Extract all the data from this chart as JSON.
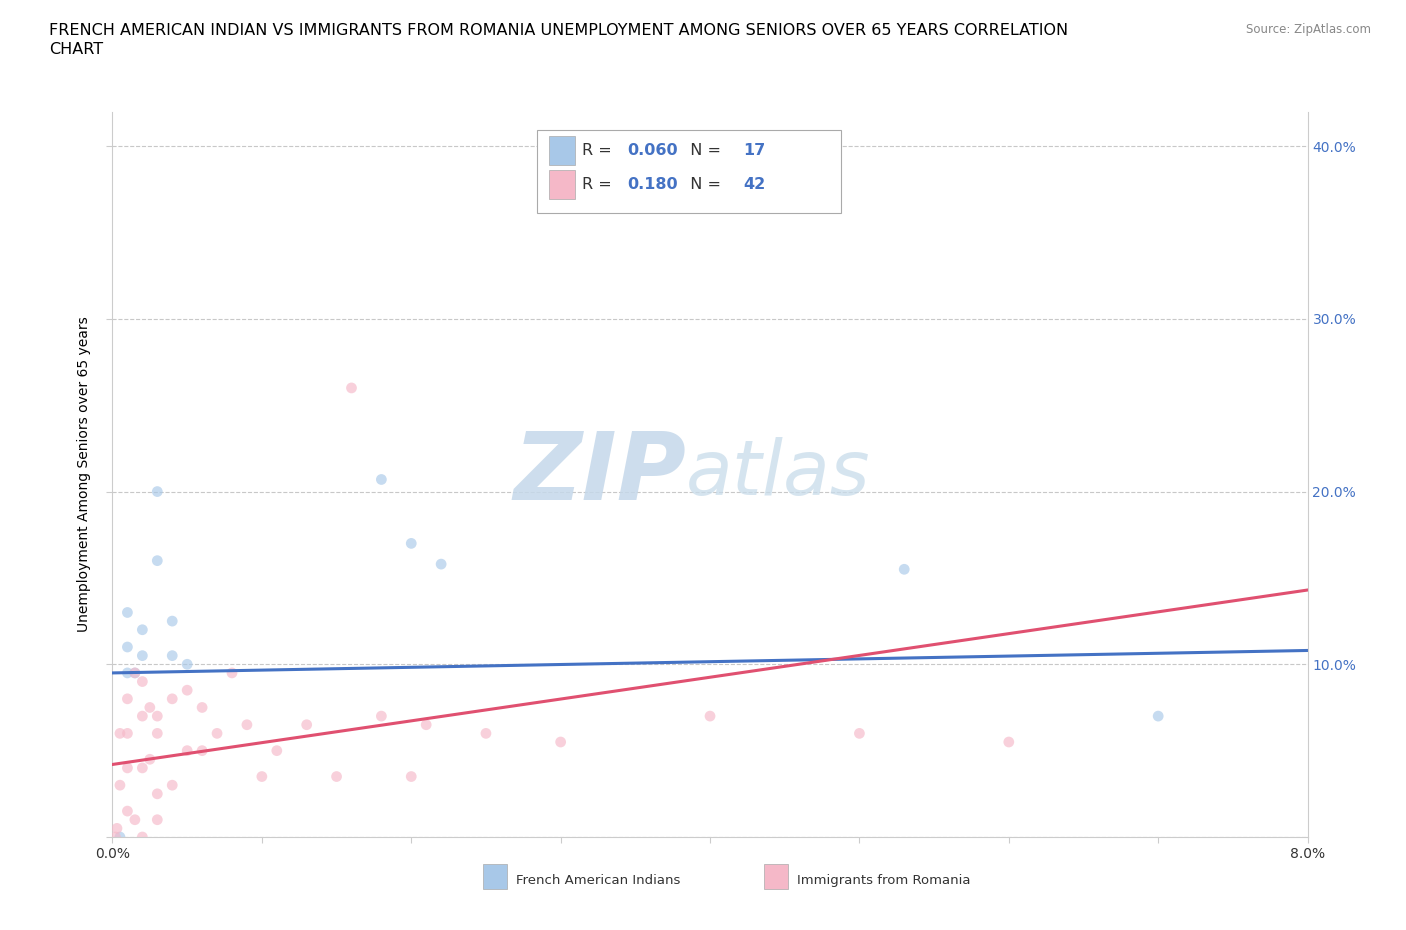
{
  "title_line1": "FRENCH AMERICAN INDIAN VS IMMIGRANTS FROM ROMANIA UNEMPLOYMENT AMONG SENIORS OVER 65 YEARS CORRELATION",
  "title_line2": "CHART",
  "source": "Source: ZipAtlas.com",
  "ylabel": "Unemployment Among Seniors over 65 years",
  "xlim": [
    0.0,
    0.08
  ],
  "ylim": [
    0.0,
    0.42
  ],
  "yticks": [
    0.0,
    0.1,
    0.2,
    0.3,
    0.4
  ],
  "ytick_labels": [
    "",
    "10.0%",
    "20.0%",
    "30.0%",
    "40.0%"
  ],
  "xticks": [
    0.0,
    0.01,
    0.02,
    0.03,
    0.04,
    0.05,
    0.06,
    0.07,
    0.08
  ],
  "xtick_labels": [
    "0.0%",
    "",
    "",
    "",
    "",
    "",
    "",
    "",
    "8.0%"
  ],
  "background_color": "#ffffff",
  "grid_color": "#c8c8c8",
  "dot_size": 60,
  "dot_alpha": 0.65,
  "title_fontsize": 11.5,
  "axis_label_fontsize": 10,
  "tick_fontsize": 10,
  "right_ytick_color": "#4472c4",
  "series": [
    {
      "name": "French American Indians",
      "color": "#a8c8e8",
      "R": 0.06,
      "N": 17,
      "trend_color": "#4472c4",
      "trend_y0": 0.095,
      "trend_y1": 0.108,
      "x": [
        0.0005,
        0.001,
        0.001,
        0.001,
        0.0015,
        0.002,
        0.002,
        0.003,
        0.003,
        0.004,
        0.004,
        0.005,
        0.018,
        0.02,
        0.022,
        0.053,
        0.07
      ],
      "y": [
        0.0,
        0.095,
        0.11,
        0.13,
        0.095,
        0.105,
        0.12,
        0.2,
        0.16,
        0.105,
        0.125,
        0.1,
        0.207,
        0.17,
        0.158,
        0.155,
        0.07
      ]
    },
    {
      "name": "Immigrants from Romania",
      "color": "#f5b8c8",
      "R": 0.18,
      "N": 42,
      "trend_color": "#e05070",
      "trend_y0": 0.042,
      "trend_y1": 0.143,
      "x": [
        0.0002,
        0.0003,
        0.0005,
        0.0005,
        0.001,
        0.001,
        0.001,
        0.001,
        0.0015,
        0.0015,
        0.002,
        0.002,
        0.002,
        0.002,
        0.0025,
        0.0025,
        0.003,
        0.003,
        0.003,
        0.003,
        0.004,
        0.004,
        0.005,
        0.005,
        0.006,
        0.006,
        0.007,
        0.008,
        0.009,
        0.01,
        0.011,
        0.013,
        0.015,
        0.016,
        0.018,
        0.02,
        0.021,
        0.025,
        0.03,
        0.04,
        0.05,
        0.06
      ],
      "y": [
        0.0,
        0.005,
        0.03,
        0.06,
        0.015,
        0.04,
        0.06,
        0.08,
        0.01,
        0.095,
        0.0,
        0.04,
        0.07,
        0.09,
        0.045,
        0.075,
        0.01,
        0.025,
        0.06,
        0.07,
        0.03,
        0.08,
        0.05,
        0.085,
        0.05,
        0.075,
        0.06,
        0.095,
        0.065,
        0.035,
        0.05,
        0.065,
        0.035,
        0.26,
        0.07,
        0.035,
        0.065,
        0.06,
        0.055,
        0.07,
        0.06,
        0.055
      ]
    }
  ]
}
